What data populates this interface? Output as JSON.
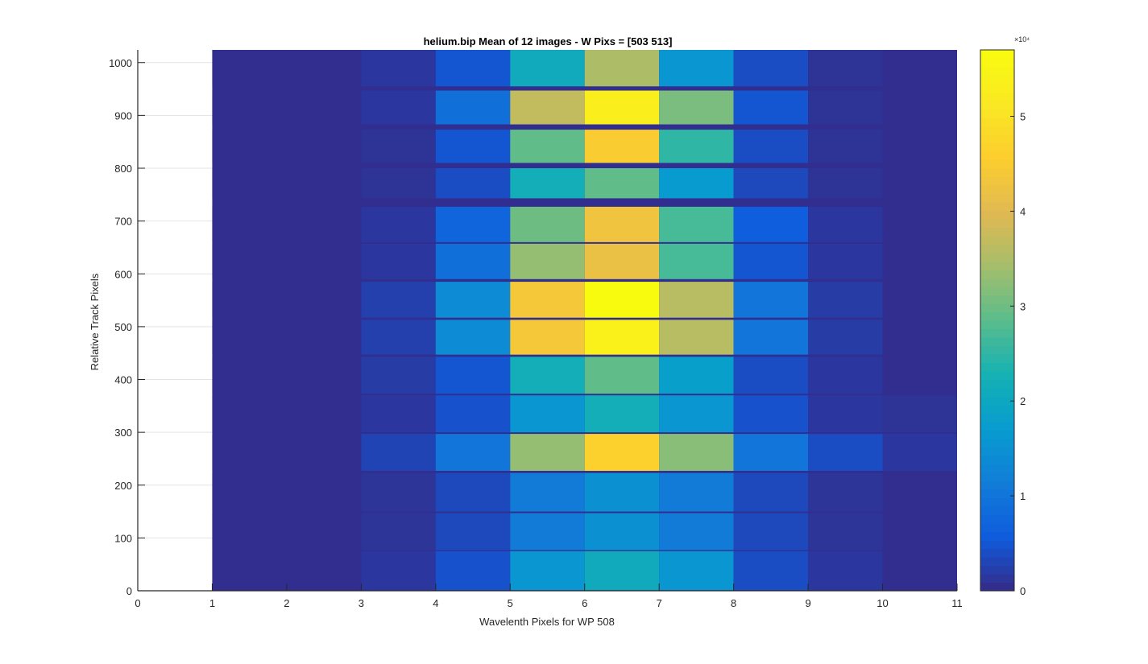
{
  "chart_data": {
    "type": "heatmap",
    "title": "helium.bip  Mean of 12 images - W Pixs = [503  513]",
    "xlabel": "Wavelenth Pixels for WP 508",
    "ylabel": "Relative Track Pixels",
    "xlim": [
      0,
      11
    ],
    "ylim": [
      0,
      1024
    ],
    "xticks": [
      0,
      1,
      2,
      3,
      4,
      5,
      6,
      7,
      8,
      9,
      10,
      11
    ],
    "yticks": [
      0,
      100,
      200,
      300,
      400,
      500,
      600,
      700,
      800,
      900,
      1000
    ],
    "grid": "horizontal",
    "colormap": "parula",
    "colorbar": {
      "min": 0,
      "max": 57000,
      "ticks": [
        0,
        1,
        2,
        3,
        4,
        5
      ],
      "exponent_label": "×10⁴",
      "multiplier": 10000
    },
    "columns": [
      {
        "x0": 1,
        "x1": 2
      },
      {
        "x0": 2,
        "x1": 3
      },
      {
        "x0": 3,
        "x1": 4
      },
      {
        "x0": 4,
        "x1": 5
      },
      {
        "x0": 5,
        "x1": 6
      },
      {
        "x0": 6,
        "x1": 7
      },
      {
        "x0": 7,
        "x1": 8
      },
      {
        "x0": 8,
        "x1": 9
      },
      {
        "x0": 9,
        "x1": 10
      },
      {
        "x0": 10,
        "x1": 11
      }
    ],
    "background_value": 500,
    "bands": [
      {
        "y0": 1,
        "y1": 75,
        "values": [
          500,
          500,
          1500,
          4500,
          16000,
          21000,
          16000,
          4000,
          1500,
          500
        ]
      },
      {
        "y0": 77,
        "y1": 147,
        "values": [
          500,
          500,
          1200,
          3500,
          11000,
          15000,
          11000,
          3500,
          1200,
          500
        ]
      },
      {
        "y0": 150,
        "y1": 223,
        "values": [
          500,
          500,
          1200,
          3500,
          11000,
          15000,
          11000,
          3500,
          1200,
          500
        ]
      },
      {
        "y0": 227,
        "y1": 297,
        "values": [
          500,
          500,
          3000,
          10000,
          33000,
          46000,
          32000,
          10000,
          4000,
          1500
        ]
      },
      {
        "y0": 300,
        "y1": 370,
        "values": [
          500,
          500,
          1500,
          4500,
          16000,
          22000,
          16000,
          4500,
          1500,
          1000
        ]
      },
      {
        "y0": 373,
        "y1": 443,
        "values": [
          500,
          500,
          2000,
          5000,
          22000,
          29000,
          18000,
          4000,
          1500,
          500
        ]
      },
      {
        "y0": 447,
        "y1": 513,
        "values": [
          500,
          500,
          2500,
          14000,
          44000,
          54000,
          36000,
          10000,
          2000,
          500
        ]
      },
      {
        "y0": 517,
        "y1": 585,
        "values": [
          500,
          500,
          2500,
          14000,
          44000,
          57000,
          36000,
          10000,
          2000,
          500
        ]
      },
      {
        "y0": 590,
        "y1": 657,
        "values": [
          500,
          500,
          1500,
          9000,
          33000,
          42000,
          27000,
          5000,
          1500,
          500
        ]
      },
      {
        "y0": 660,
        "y1": 727,
        "values": [
          500,
          500,
          1500,
          7000,
          30000,
          43000,
          27000,
          6000,
          1500,
          500
        ]
      },
      {
        "y0": 743,
        "y1": 800,
        "values": [
          500,
          500,
          1000,
          4000,
          22000,
          29000,
          17000,
          3500,
          1000,
          500
        ]
      },
      {
        "y0": 810,
        "y1": 873,
        "values": [
          500,
          500,
          1000,
          5000,
          29000,
          45000,
          25000,
          4000,
          1000,
          500
        ]
      },
      {
        "y0": 883,
        "y1": 947,
        "values": [
          500,
          500,
          1500,
          9000,
          37000,
          53000,
          31000,
          5000,
          1000,
          500
        ]
      },
      {
        "y0": 955,
        "y1": 1024,
        "values": [
          500,
          500,
          1500,
          5000,
          21000,
          35000,
          16000,
          4000,
          1000,
          500
        ]
      }
    ]
  }
}
